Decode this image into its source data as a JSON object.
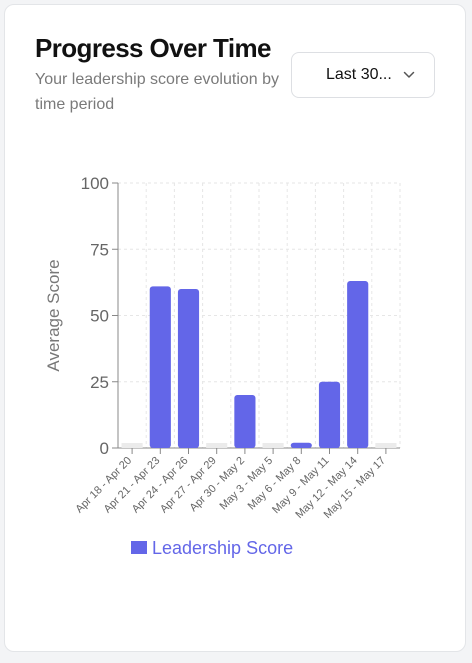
{
  "card": {
    "title": "Progress Over Time",
    "subtitle": "Your leadership score evolution by time period"
  },
  "period_select": {
    "value": "Last 30...",
    "icon": "chevron-down-icon"
  },
  "colors": {
    "bar": "#6366e8",
    "empty_bar": "#ebebeb",
    "grid": "#e6e6e6",
    "axis": "#888888"
  },
  "chart_data": {
    "type": "bar",
    "ylabel": "Average Score",
    "xlabel": "",
    "ylim": [
      0,
      100
    ],
    "yticks": [
      0,
      25,
      50,
      75,
      100
    ],
    "grid": true,
    "legend_position": "bottom",
    "categories": [
      "Apr 18 - Apr 20",
      "Apr 21 - Apr 23",
      "Apr 24 - Apr 26",
      "Apr 27 - Apr 29",
      "Apr 30 - May 2",
      "May 3 - May 5",
      "May 6 - May 8",
      "May 9 - May 11",
      "May 12 - May 14",
      "May 15 - May 17"
    ],
    "series": [
      {
        "name": "Leadership Score",
        "values": [
          0,
          61,
          60,
          0,
          20,
          0,
          2,
          25,
          63,
          0
        ]
      }
    ]
  }
}
